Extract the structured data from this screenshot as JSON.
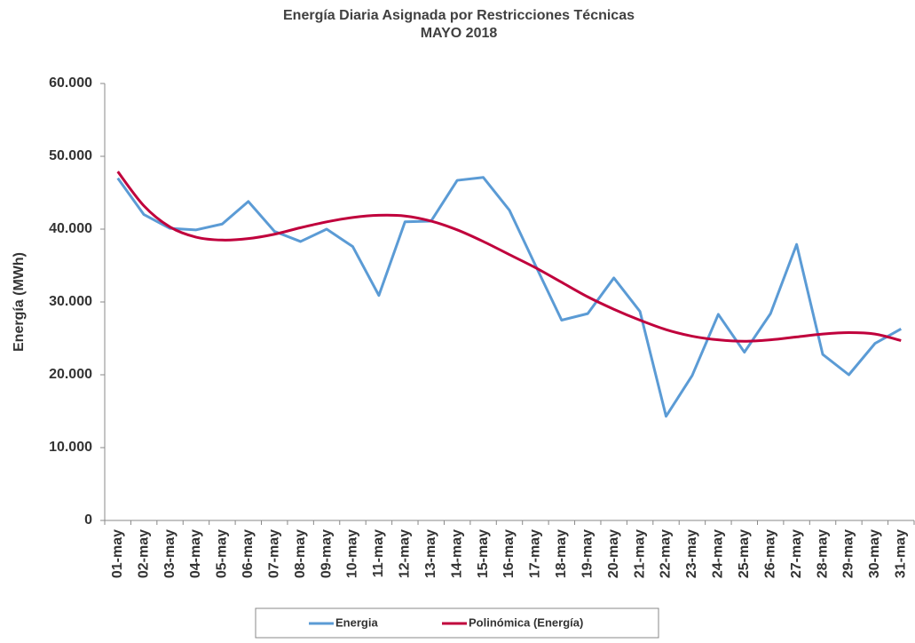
{
  "chart_data": {
    "type": "line",
    "title": "Energía Diaria Asignada por Restricciones Técnicas",
    "subtitle": "MAYO 2018",
    "y_label": "Energía (MWh)",
    "categories": [
      "01-may",
      "02-may",
      "03-may",
      "04-may",
      "05-may",
      "06-may",
      "07-may",
      "08-may",
      "09-may",
      "10-may",
      "11-may",
      "12-may",
      "13-may",
      "14-may",
      "15-may",
      "16-may",
      "17-may",
      "18-may",
      "19-may",
      "20-may",
      "21-may",
      "22-may",
      "23-may",
      "24-may",
      "25-may",
      "26-may",
      "27-may",
      "28-may",
      "29-may",
      "30-may",
      "31-may"
    ],
    "series": [
      {
        "name": "Energia",
        "color": "#5b9bd5",
        "values": [
          47000,
          42000,
          40100,
          39900,
          40700,
          43800,
          39700,
          38300,
          40000,
          37600,
          30900,
          41000,
          41100,
          46700,
          47100,
          42600,
          35000,
          27500,
          28400,
          33300,
          28700,
          14300,
          19900,
          28300,
          23100,
          28400,
          37900,
          22800,
          20000,
          24300,
          26300
        ]
      },
      {
        "name": "Polinómica (Energía)",
        "color": "#c0003c",
        "values": [
          47900,
          43200,
          40300,
          38900,
          38500,
          38700,
          39300,
          40200,
          41000,
          41600,
          41900,
          41800,
          41100,
          39900,
          38300,
          36500,
          34700,
          32700,
          30700,
          29000,
          27500,
          26200,
          25300,
          24800,
          24600,
          24800,
          25200,
          25600,
          25800,
          25600,
          24700
        ]
      }
    ],
    "ylim": [
      0,
      60000
    ],
    "yticks": [
      0,
      {
        "value": 10000,
        "label": "10.000"
      },
      {
        "value": 20000,
        "label": "20.000"
      },
      {
        "value": 30000,
        "label": "30.000"
      },
      {
        "value": 40000,
        "label": "40.000"
      },
      {
        "value": 50000,
        "label": "50.000"
      },
      {
        "value": 60000,
        "label": "60.000"
      }
    ],
    "grid": false,
    "legend": "bottom"
  }
}
